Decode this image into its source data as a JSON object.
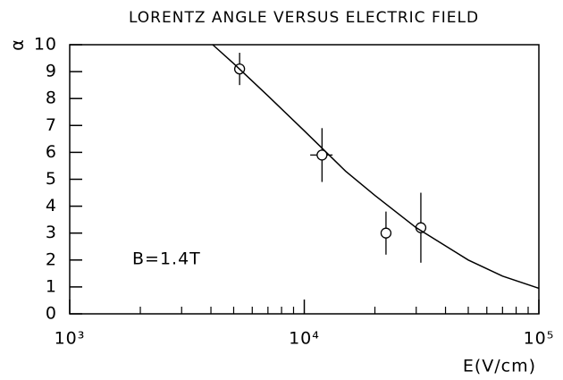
{
  "chart_data": {
    "type": "scatter",
    "title": "LORENTZ ANGLE VERSUS  ELECTRIC FIELD",
    "xlabel": "E(V/cm)",
    "ylabel": "α",
    "annotation": "B=1.4T",
    "xscale": "log",
    "xlim": [
      1000,
      100000
    ],
    "xticks": [
      {
        "value": 1000,
        "label": "10³"
      },
      {
        "value": 10000,
        "label": "10⁴"
      },
      {
        "value": 100000,
        "label": "10⁵"
      }
    ],
    "xminorticks": [
      2000,
      3000,
      4000,
      5000,
      6000,
      7000,
      8000,
      9000,
      20000,
      30000,
      40000,
      50000,
      60000,
      70000,
      80000,
      90000
    ],
    "ylim": [
      0,
      10
    ],
    "yticks": [
      0,
      1,
      2,
      3,
      4,
      5,
      6,
      7,
      8,
      9,
      10
    ],
    "color": "#000000",
    "series": [
      {
        "type": "scatter",
        "x": [
          5300,
          11900,
          22300,
          31400
        ],
        "xerrors": [
          0,
          1300,
          0,
          1200
        ],
        "values": [
          9.1,
          5.9,
          3.0,
          3.2
        ],
        "errors": [
          0.6,
          1.0,
          0.8,
          1.3
        ]
      },
      {
        "type": "line",
        "x": [
          4070,
          5000,
          7000,
          10000,
          15000,
          20000,
          30000,
          50000,
          70000,
          100000
        ],
        "values": [
          10,
          9.3,
          8.1,
          6.8,
          5.3,
          4.4,
          3.2,
          2.0,
          1.4,
          0.95
        ]
      }
    ]
  }
}
